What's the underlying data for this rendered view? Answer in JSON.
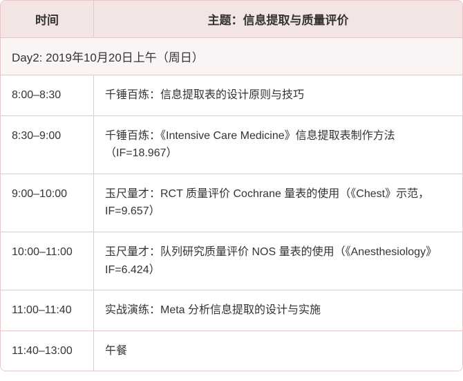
{
  "table": {
    "columns": [
      {
        "label": "时间",
        "width": 135,
        "align": "center"
      },
      {
        "label": "主题：信息提取与质量评价",
        "align": "center"
      }
    ],
    "section_header": "Day2: 2019年10月20日上午（周日）",
    "rows": [
      {
        "time": "8:00–8:30",
        "topic": "千锤百炼：信息提取表的设计原则与技巧"
      },
      {
        "time": "8:30–9:00",
        "topic": "千锤百炼：《Intensive Care Medicine》信息提取表制作方法（IF=18.967）"
      },
      {
        "time": "9:00–10:00",
        "topic": "玉尺量才：RCT 质量评价 Cochrane 量表的使用（《Chest》示范，IF=9.657）"
      },
      {
        "time": "10:00–11:00",
        "topic": "玉尺量才：队列研究质量评价 NOS 量表的使用（《Anesthesiology》IF=6.424）"
      },
      {
        "time": "11:00–11:40",
        "topic": "实战演练：Meta 分析信息提取的设计与实施"
      },
      {
        "time": "11:40–13:00",
        "topic": "午餐"
      }
    ],
    "styles": {
      "border_color": "#e4c8c8",
      "header_bg": "#f4e5e5",
      "section_bg": "#fbf4f4",
      "row_bg": "#ffffff",
      "text_color": "#333333",
      "header_fontsize": 17,
      "body_fontsize": 16,
      "border_radius": 8
    }
  }
}
